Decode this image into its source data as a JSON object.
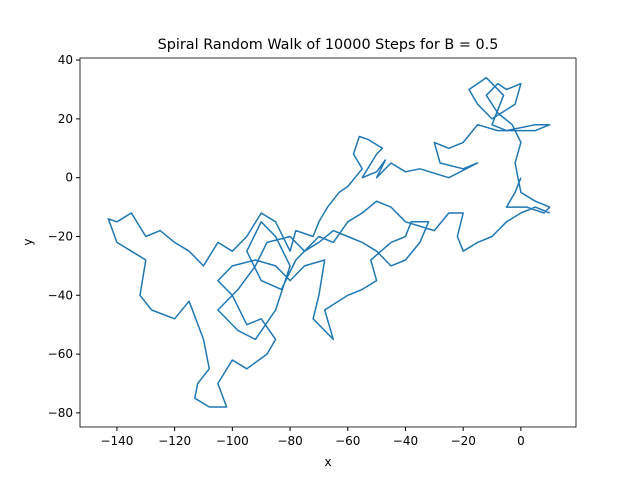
{
  "chart_data": {
    "type": "line",
    "title": "Spiral Random Walk of 10000 Steps for B = 0.5",
    "xlabel": "x",
    "ylabel": "y",
    "color": "#1f77b4",
    "x": [
      0,
      -2,
      -5,
      2,
      8,
      10,
      5,
      0,
      -2,
      0,
      -3,
      -8,
      -12,
      -8,
      -5,
      0,
      -2,
      -10,
      -15,
      -18,
      -12,
      -6,
      -10,
      -5,
      5,
      10,
      5,
      -8,
      -15,
      -20,
      -25,
      -30,
      -28,
      -20,
      -15,
      -25,
      -35,
      -40,
      -45,
      -50,
      -47,
      -50,
      -55,
      -50,
      -48,
      -53,
      -56,
      -58,
      -55,
      -60,
      -63,
      -67,
      -70,
      -72,
      -78,
      -80,
      -85,
      -90,
      -95,
      -100,
      -105,
      -110,
      -115,
      -120,
      -125,
      -130,
      -135,
      -140,
      -143,
      -140,
      -135,
      -130,
      -132,
      -128,
      -120,
      -115,
      -110,
      -108,
      -112,
      -113,
      -108,
      -102,
      -105,
      -100,
      -95,
      -88,
      -85,
      -90,
      -95,
      -100,
      -105,
      -100,
      -92,
      -85,
      -80,
      -75,
      -68,
      -70,
      -72,
      -68,
      -65,
      -68,
      -60,
      -55,
      -50,
      -52,
      -45,
      -40,
      -38,
      -32,
      -35,
      -40,
      -45,
      -50,
      -55,
      -60,
      -65,
      -70,
      -75,
      -80,
      -88,
      -92,
      -98,
      -105,
      -98,
      -92,
      -85,
      -80,
      -85,
      -90,
      -95,
      -90,
      -83,
      -78,
      -70,
      -65,
      -60,
      -55,
      -50,
      -45,
      -40,
      -30,
      -25,
      -20,
      -22,
      -20,
      -15,
      -10,
      -5,
      0,
      5,
      10
    ],
    "values": [
      0,
      -5,
      -10,
      -10,
      -12,
      -10,
      -8,
      -5,
      5,
      12,
      18,
      22,
      28,
      32,
      30,
      32,
      25,
      20,
      25,
      30,
      34,
      28,
      18,
      16,
      18,
      18,
      16,
      16,
      18,
      12,
      10,
      12,
      5,
      3,
      5,
      0,
      3,
      2,
      5,
      0,
      6,
      2,
      0,
      8,
      10,
      13,
      14,
      8,
      3,
      -3,
      -5,
      -10,
      -15,
      -20,
      -18,
      -25,
      -15,
      -12,
      -20,
      -25,
      -22,
      -30,
      -25,
      -22,
      -18,
      -20,
      -12,
      -15,
      -14,
      -22,
      -25,
      -28,
      -40,
      -45,
      -48,
      -42,
      -55,
      -65,
      -70,
      -75,
      -78,
      -78,
      -70,
      -62,
      -65,
      -60,
      -55,
      -48,
      -50,
      -40,
      -35,
      -30,
      -28,
      -30,
      -35,
      -30,
      -28,
      -40,
      -48,
      -52,
      -55,
      -45,
      -40,
      -38,
      -35,
      -28,
      -22,
      -20,
      -15,
      -15,
      -22,
      -28,
      -30,
      -25,
      -22,
      -20,
      -18,
      -22,
      -25,
      -20,
      -22,
      -30,
      -38,
      -45,
      -52,
      -55,
      -45,
      -30,
      -20,
      -15,
      -25,
      -35,
      -38,
      -28,
      -20,
      -22,
      -15,
      -12,
      -8,
      -10,
      -15,
      -18,
      -12,
      -12,
      -20,
      -25,
      -22,
      -20,
      -15,
      -12,
      -10,
      -12
    ],
    "xlim": [
      -152.8,
      19.1
    ],
    "ylim": [
      -84.8,
      40.7
    ],
    "xticks": [
      {
        "value": -140,
        "label": "−140"
      },
      {
        "value": -120,
        "label": "−120"
      },
      {
        "value": -100,
        "label": "−100"
      },
      {
        "value": -80,
        "label": "−80"
      },
      {
        "value": -60,
        "label": "−60"
      },
      {
        "value": -40,
        "label": "−40"
      },
      {
        "value": -20,
        "label": "−20"
      },
      0
    ],
    "yticks": [
      {
        "value": -80,
        "label": "−80"
      },
      {
        "value": -60,
        "label": "−60"
      },
      {
        "value": -40,
        "label": "−40"
      },
      {
        "value": -20,
        "label": "−20"
      },
      0,
      20,
      40
    ]
  }
}
